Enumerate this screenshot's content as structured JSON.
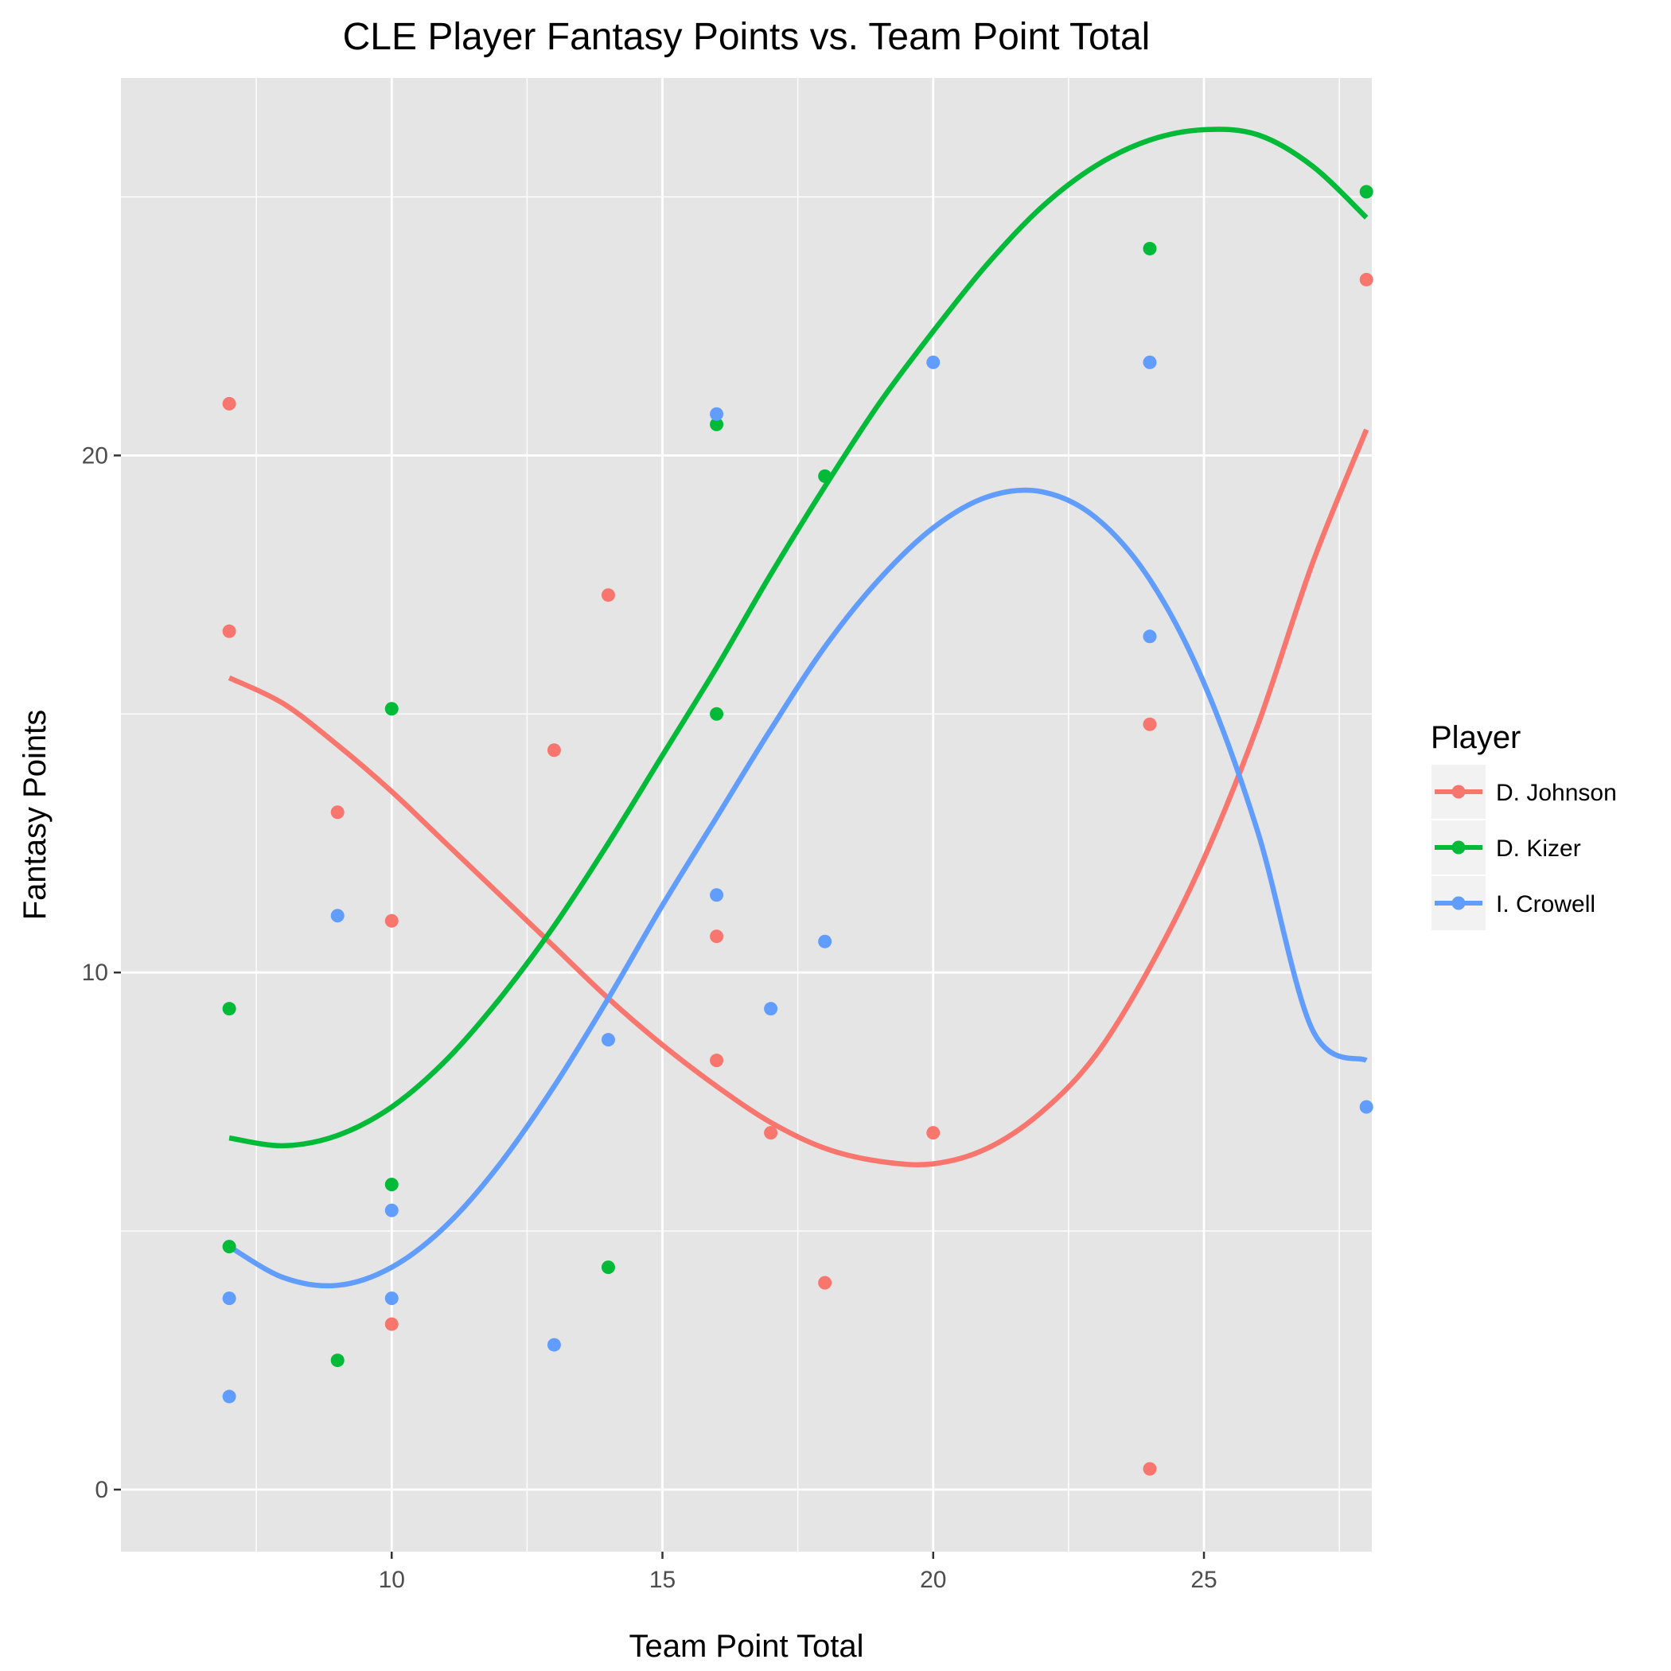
{
  "chart_data": {
    "type": "scatter",
    "title": "CLE Player Fantasy Points vs. Team Point Total",
    "xlabel": "Team Point Total",
    "ylabel": "Fantasy Points",
    "xlim": [
      5.0,
      28.1
    ],
    "ylim": [
      -1.2,
      27.3
    ],
    "x_ticks": [
      10,
      15,
      20,
      25
    ],
    "y_ticks": [
      0,
      10,
      20
    ],
    "grid": true,
    "legend": {
      "title": "Player",
      "position": "right"
    },
    "series": [
      {
        "name": "D. Johnson",
        "color": "#F8766D",
        "points": [
          [
            7,
            21.0
          ],
          [
            7,
            16.6
          ],
          [
            9,
            13.1
          ],
          [
            10,
            11.0
          ],
          [
            10,
            3.2
          ],
          [
            13,
            14.3
          ],
          [
            14,
            17.3
          ],
          [
            16,
            10.7
          ],
          [
            16,
            8.3
          ],
          [
            17,
            6.9
          ],
          [
            18,
            4.0
          ],
          [
            20,
            6.9
          ],
          [
            24,
            14.8
          ],
          [
            24,
            0.4
          ],
          [
            28,
            23.4
          ]
        ],
        "trend": [
          [
            7,
            15.7
          ],
          [
            8,
            15.2
          ],
          [
            9,
            14.4
          ],
          [
            10,
            13.5
          ],
          [
            11,
            12.5
          ],
          [
            12,
            11.5
          ],
          [
            13,
            10.5
          ],
          [
            14,
            9.5
          ],
          [
            15,
            8.6
          ],
          [
            16,
            7.8
          ],
          [
            17,
            7.1
          ],
          [
            18,
            6.6
          ],
          [
            19,
            6.35
          ],
          [
            20,
            6.3
          ],
          [
            21,
            6.6
          ],
          [
            22,
            7.3
          ],
          [
            23,
            8.4
          ],
          [
            24,
            10.1
          ],
          [
            25,
            12.2
          ],
          [
            26,
            14.8
          ],
          [
            27,
            17.9
          ],
          [
            28,
            20.5
          ]
        ]
      },
      {
        "name": "D. Kizer",
        "color": "#00BA38",
        "points": [
          [
            7,
            9.3
          ],
          [
            7,
            4.7
          ],
          [
            9,
            2.5
          ],
          [
            10,
            15.1
          ],
          [
            10,
            5.9
          ],
          [
            14,
            4.3
          ],
          [
            16,
            20.6
          ],
          [
            16,
            15.0
          ],
          [
            18,
            19.6
          ],
          [
            24,
            24.0
          ],
          [
            28,
            25.1
          ]
        ],
        "trend": [
          [
            7,
            6.8
          ],
          [
            8,
            6.65
          ],
          [
            9,
            6.85
          ],
          [
            10,
            7.4
          ],
          [
            11,
            8.3
          ],
          [
            12,
            9.5
          ],
          [
            13,
            10.9
          ],
          [
            14,
            12.5
          ],
          [
            15,
            14.2
          ],
          [
            16,
            15.9
          ],
          [
            17,
            17.7
          ],
          [
            18,
            19.4
          ],
          [
            19,
            21.0
          ],
          [
            20,
            22.4
          ],
          [
            21,
            23.7
          ],
          [
            22,
            24.8
          ],
          [
            23,
            25.6
          ],
          [
            24,
            26.1
          ],
          [
            25,
            26.3
          ],
          [
            26,
            26.2
          ],
          [
            27,
            25.6
          ],
          [
            28,
            24.6
          ]
        ]
      },
      {
        "name": "I. Crowell",
        "color": "#619CFF",
        "points": [
          [
            7,
            3.7
          ],
          [
            7,
            1.8
          ],
          [
            9,
            11.1
          ],
          [
            10,
            5.4
          ],
          [
            10,
            3.7
          ],
          [
            13,
            2.8
          ],
          [
            14,
            8.7
          ],
          [
            16,
            20.8
          ],
          [
            16,
            11.5
          ],
          [
            17,
            9.3
          ],
          [
            18,
            10.6
          ],
          [
            20,
            21.8
          ],
          [
            24,
            21.8
          ],
          [
            24,
            16.5
          ],
          [
            28,
            7.4
          ]
        ],
        "trend": [
          [
            7,
            4.7
          ],
          [
            8,
            4.1
          ],
          [
            9,
            3.95
          ],
          [
            10,
            4.3
          ],
          [
            11,
            5.1
          ],
          [
            12,
            6.3
          ],
          [
            13,
            7.8
          ],
          [
            14,
            9.5
          ],
          [
            15,
            11.3
          ],
          [
            16,
            13.0
          ],
          [
            17,
            14.7
          ],
          [
            18,
            16.3
          ],
          [
            19,
            17.6
          ],
          [
            20,
            18.6
          ],
          [
            21,
            19.2
          ],
          [
            22,
            19.3
          ],
          [
            23,
            18.8
          ],
          [
            24,
            17.6
          ],
          [
            25,
            15.6
          ],
          [
            26,
            12.7
          ],
          [
            27,
            8.9
          ],
          [
            28,
            8.3
          ]
        ]
      }
    ]
  }
}
